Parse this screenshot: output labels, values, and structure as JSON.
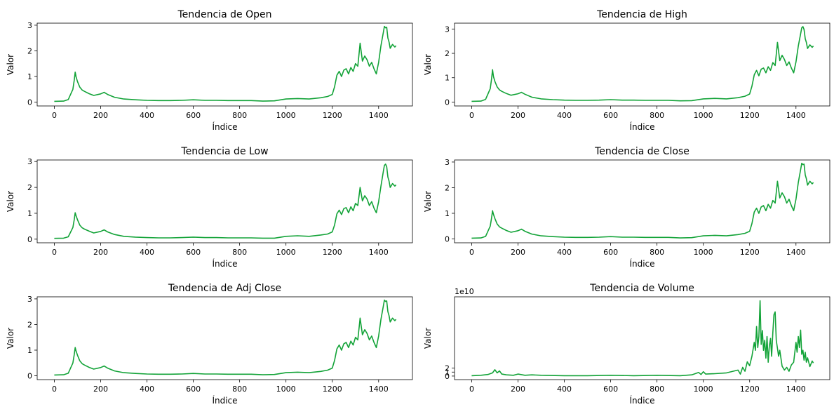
{
  "figure": {
    "background": "#ffffff",
    "line_color": "#13a338"
  },
  "chart_data": [
    {
      "type": "line",
      "title": "Tendencia de Open",
      "xlabel": "Índice",
      "ylabel": "Valor",
      "xlim": [
        -74,
        1546
      ],
      "ylim": [
        -0.15,
        3.08
      ],
      "xticks": [
        0,
        200,
        400,
        600,
        800,
        1000,
        1200,
        1400
      ],
      "yticks": [
        0,
        1,
        2,
        3
      ],
      "ytick_labels": [
        "0",
        "1",
        "2",
        "3"
      ],
      "offset_text": "",
      "grid": false,
      "series": [
        {
          "x": [
            0,
            40,
            60,
            70,
            80,
            86,
            90,
            94,
            100,
            110,
            120,
            130,
            150,
            170,
            200,
            215,
            230,
            260,
            300,
            350,
            400,
            450,
            500,
            550,
            600,
            650,
            700,
            750,
            800,
            850,
            900,
            950,
            1000,
            1050,
            1100,
            1150,
            1180,
            1200,
            1210,
            1220,
            1230,
            1240,
            1250,
            1260,
            1270,
            1280,
            1290,
            1300,
            1310,
            1320,
            1330,
            1340,
            1350,
            1360,
            1370,
            1380,
            1390,
            1400,
            1410,
            1420,
            1425,
            1430,
            1435,
            1440,
            1445,
            1450,
            1460,
            1470,
            1475
          ],
          "y": [
            0.03,
            0.04,
            0.1,
            0.3,
            0.5,
            0.85,
            1.17,
            0.98,
            0.8,
            0.58,
            0.47,
            0.42,
            0.33,
            0.26,
            0.32,
            0.38,
            0.3,
            0.19,
            0.12,
            0.09,
            0.07,
            0.06,
            0.06,
            0.07,
            0.09,
            0.07,
            0.07,
            0.06,
            0.06,
            0.06,
            0.04,
            0.05,
            0.12,
            0.14,
            0.12,
            0.17,
            0.22,
            0.3,
            0.6,
            1.05,
            1.2,
            1.0,
            1.25,
            1.3,
            1.1,
            1.35,
            1.2,
            1.5,
            1.4,
            2.3,
            1.6,
            1.8,
            1.65,
            1.4,
            1.55,
            1.3,
            1.1,
            1.55,
            2.2,
            2.7,
            2.95,
            2.9,
            2.92,
            2.5,
            2.35,
            2.1,
            2.25,
            2.15,
            2.2
          ]
        }
      ]
    },
    {
      "type": "line",
      "title": "Tendencia de High",
      "xlabel": "Índice",
      "ylabel": "Valor",
      "xlim": [
        -74,
        1546
      ],
      "ylim": [
        -0.16,
        3.24
      ],
      "xticks": [
        0,
        200,
        400,
        600,
        800,
        1000,
        1200,
        1400
      ],
      "yticks": [
        0,
        1,
        2,
        3
      ],
      "ytick_labels": [
        "0",
        "1",
        "2",
        "3"
      ],
      "offset_text": "",
      "grid": false,
      "series": [
        {
          "x": [
            0,
            40,
            60,
            70,
            80,
            86,
            90,
            94,
            100,
            110,
            120,
            130,
            150,
            170,
            200,
            215,
            230,
            260,
            300,
            350,
            400,
            450,
            500,
            550,
            600,
            650,
            700,
            750,
            800,
            850,
            900,
            950,
            1000,
            1050,
            1100,
            1150,
            1180,
            1200,
            1210,
            1220,
            1230,
            1240,
            1250,
            1260,
            1270,
            1280,
            1290,
            1300,
            1310,
            1320,
            1330,
            1340,
            1350,
            1360,
            1370,
            1380,
            1390,
            1400,
            1410,
            1420,
            1425,
            1430,
            1435,
            1440,
            1445,
            1450,
            1460,
            1470,
            1475
          ],
          "y": [
            0.03,
            0.04,
            0.11,
            0.33,
            0.55,
            0.95,
            1.33,
            1.05,
            0.85,
            0.62,
            0.5,
            0.44,
            0.35,
            0.28,
            0.34,
            0.4,
            0.32,
            0.2,
            0.13,
            0.1,
            0.08,
            0.07,
            0.07,
            0.08,
            0.1,
            0.08,
            0.08,
            0.07,
            0.07,
            0.07,
            0.05,
            0.06,
            0.13,
            0.15,
            0.13,
            0.18,
            0.24,
            0.33,
            0.65,
            1.12,
            1.3,
            1.08,
            1.35,
            1.4,
            1.2,
            1.45,
            1.3,
            1.62,
            1.5,
            2.45,
            1.7,
            1.92,
            1.75,
            1.5,
            1.65,
            1.4,
            1.2,
            1.65,
            2.3,
            2.8,
            3.05,
            3.1,
            2.98,
            2.6,
            2.45,
            2.2,
            2.35,
            2.25,
            2.3
          ]
        }
      ]
    },
    {
      "type": "line",
      "title": "Tendencia de Low",
      "xlabel": "Índice",
      "ylabel": "Valor",
      "xlim": [
        -74,
        1546
      ],
      "ylim": [
        -0.14,
        3.06
      ],
      "xticks": [
        0,
        200,
        400,
        600,
        800,
        1000,
        1200,
        1400
      ],
      "yticks": [
        0,
        1,
        2,
        3
      ],
      "ytick_labels": [
        "0",
        "1",
        "2",
        "3"
      ],
      "offset_text": "",
      "grid": false,
      "series": [
        {
          "x": [
            0,
            40,
            60,
            70,
            80,
            86,
            90,
            94,
            100,
            110,
            120,
            130,
            150,
            170,
            200,
            215,
            230,
            260,
            300,
            350,
            400,
            450,
            500,
            550,
            600,
            650,
            700,
            750,
            800,
            850,
            900,
            950,
            1000,
            1050,
            1100,
            1150,
            1180,
            1200,
            1210,
            1220,
            1230,
            1240,
            1250,
            1260,
            1270,
            1280,
            1290,
            1300,
            1310,
            1320,
            1330,
            1340,
            1350,
            1360,
            1370,
            1380,
            1390,
            1400,
            1410,
            1420,
            1425,
            1430,
            1435,
            1440,
            1445,
            1450,
            1460,
            1470,
            1475
          ],
          "y": [
            0.03,
            0.04,
            0.09,
            0.27,
            0.45,
            0.75,
            1.02,
            0.9,
            0.75,
            0.54,
            0.44,
            0.39,
            0.31,
            0.24,
            0.3,
            0.36,
            0.28,
            0.18,
            0.11,
            0.08,
            0.06,
            0.05,
            0.05,
            0.06,
            0.08,
            0.06,
            0.06,
            0.05,
            0.05,
            0.05,
            0.04,
            0.04,
            0.11,
            0.13,
            0.11,
            0.16,
            0.2,
            0.28,
            0.55,
            0.98,
            1.12,
            0.95,
            1.18,
            1.22,
            1.02,
            1.25,
            1.1,
            1.38,
            1.3,
            2.0,
            1.48,
            1.68,
            1.55,
            1.3,
            1.45,
            1.2,
            1.02,
            1.45,
            2.05,
            2.6,
            2.85,
            2.9,
            2.8,
            2.4,
            2.25,
            2.0,
            2.15,
            2.05,
            2.1
          ]
        }
      ]
    },
    {
      "type": "line",
      "title": "Tendencia de Close",
      "xlabel": "Índice",
      "ylabel": "Valor",
      "xlim": [
        -74,
        1546
      ],
      "ylim": [
        -0.15,
        3.08
      ],
      "xticks": [
        0,
        200,
        400,
        600,
        800,
        1000,
        1200,
        1400
      ],
      "yticks": [
        0,
        1,
        2,
        3
      ],
      "ytick_labels": [
        "0",
        "1",
        "2",
        "3"
      ],
      "offset_text": "",
      "grid": false,
      "series": [
        {
          "x": [
            0,
            40,
            60,
            70,
            80,
            86,
            90,
            94,
            100,
            110,
            120,
            130,
            150,
            170,
            200,
            215,
            230,
            260,
            300,
            350,
            400,
            450,
            500,
            550,
            600,
            650,
            700,
            750,
            800,
            850,
            900,
            950,
            1000,
            1050,
            1100,
            1150,
            1180,
            1200,
            1210,
            1220,
            1230,
            1240,
            1250,
            1260,
            1270,
            1280,
            1290,
            1300,
            1310,
            1320,
            1330,
            1340,
            1350,
            1360,
            1370,
            1380,
            1390,
            1400,
            1410,
            1420,
            1425,
            1430,
            1435,
            1440,
            1445,
            1450,
            1460,
            1470,
            1475
          ],
          "y": [
            0.03,
            0.04,
            0.1,
            0.3,
            0.5,
            0.82,
            1.1,
            0.96,
            0.8,
            0.58,
            0.47,
            0.42,
            0.33,
            0.26,
            0.32,
            0.38,
            0.3,
            0.19,
            0.12,
            0.09,
            0.07,
            0.06,
            0.06,
            0.07,
            0.09,
            0.07,
            0.07,
            0.06,
            0.06,
            0.06,
            0.04,
            0.05,
            0.12,
            0.14,
            0.12,
            0.17,
            0.22,
            0.3,
            0.6,
            1.05,
            1.2,
            1.0,
            1.25,
            1.3,
            1.1,
            1.35,
            1.2,
            1.5,
            1.4,
            2.25,
            1.6,
            1.8,
            1.65,
            1.4,
            1.55,
            1.3,
            1.1,
            1.55,
            2.2,
            2.7,
            2.95,
            2.9,
            2.92,
            2.5,
            2.35,
            2.1,
            2.25,
            2.15,
            2.2
          ]
        }
      ]
    },
    {
      "type": "line",
      "title": "Tendencia de Adj Close",
      "xlabel": "Índice",
      "ylabel": "Valor",
      "xlim": [
        -74,
        1546
      ],
      "ylim": [
        -0.15,
        3.08
      ],
      "xticks": [
        0,
        200,
        400,
        600,
        800,
        1000,
        1200,
        1400
      ],
      "yticks": [
        0,
        1,
        2,
        3
      ],
      "ytick_labels": [
        "0",
        "1",
        "2",
        "3"
      ],
      "offset_text": "",
      "grid": false,
      "series": [
        {
          "x": [
            0,
            40,
            60,
            70,
            80,
            86,
            90,
            94,
            100,
            110,
            120,
            130,
            150,
            170,
            200,
            215,
            230,
            260,
            300,
            350,
            400,
            450,
            500,
            550,
            600,
            650,
            700,
            750,
            800,
            850,
            900,
            950,
            1000,
            1050,
            1100,
            1150,
            1180,
            1200,
            1210,
            1220,
            1230,
            1240,
            1250,
            1260,
            1270,
            1280,
            1290,
            1300,
            1310,
            1320,
            1330,
            1340,
            1350,
            1360,
            1370,
            1380,
            1390,
            1400,
            1410,
            1420,
            1425,
            1430,
            1435,
            1440,
            1445,
            1450,
            1460,
            1470,
            1475
          ],
          "y": [
            0.03,
            0.04,
            0.1,
            0.3,
            0.5,
            0.82,
            1.1,
            0.96,
            0.8,
            0.58,
            0.47,
            0.42,
            0.33,
            0.26,
            0.32,
            0.38,
            0.3,
            0.19,
            0.12,
            0.09,
            0.07,
            0.06,
            0.06,
            0.07,
            0.09,
            0.07,
            0.07,
            0.06,
            0.06,
            0.06,
            0.04,
            0.05,
            0.12,
            0.14,
            0.12,
            0.17,
            0.22,
            0.3,
            0.6,
            1.05,
            1.2,
            1.0,
            1.25,
            1.3,
            1.1,
            1.35,
            1.2,
            1.5,
            1.4,
            2.25,
            1.6,
            1.8,
            1.65,
            1.4,
            1.55,
            1.3,
            1.1,
            1.55,
            2.2,
            2.7,
            2.95,
            2.9,
            2.92,
            2.5,
            2.35,
            2.1,
            2.25,
            2.15,
            2.2
          ]
        }
      ]
    },
    {
      "type": "line",
      "title": "Tendencia de Volume",
      "xlabel": "Índice",
      "ylabel": "Valor",
      "xlim": [
        -74,
        1546
      ],
      "ylim": [
        -0.9,
        20
      ],
      "xticks": [
        0,
        200,
        400,
        600,
        800,
        1000,
        1200,
        1400
      ],
      "yticks": [
        0,
        1,
        2
      ],
      "ytick_labels": [
        "0",
        "1",
        "2"
      ],
      "y_units": "1e10",
      "offset_text": "1e10",
      "grid": false,
      "series": [
        {
          "x": [
            0,
            40,
            70,
            90,
            100,
            110,
            120,
            130,
            150,
            180,
            200,
            230,
            260,
            300,
            400,
            500,
            600,
            700,
            800,
            900,
            950,
            980,
            990,
            1000,
            1010,
            1050,
            1100,
            1150,
            1160,
            1170,
            1180,
            1190,
            1200,
            1210,
            1220,
            1225,
            1230,
            1235,
            1240,
            1245,
            1250,
            1255,
            1260,
            1265,
            1270,
            1275,
            1280,
            1285,
            1290,
            1295,
            1300,
            1305,
            1310,
            1315,
            1320,
            1325,
            1330,
            1340,
            1350,
            1360,
            1370,
            1380,
            1390,
            1400,
            1405,
            1410,
            1415,
            1420,
            1425,
            1430,
            1435,
            1440,
            1445,
            1450,
            1460,
            1470,
            1475
          ],
          "y": [
            0.1,
            0.2,
            0.4,
            0.8,
            1.6,
            0.8,
            1.3,
            0.5,
            0.3,
            0.2,
            0.5,
            0.2,
            0.3,
            0.2,
            0.1,
            0.1,
            0.2,
            0.1,
            0.2,
            0.1,
            0.3,
            0.9,
            0.4,
            1.1,
            0.5,
            0.6,
            0.8,
            1.5,
            0.5,
            2.2,
            1.2,
            3.6,
            2.6,
            5.0,
            8.5,
            6.5,
            12.5,
            7.2,
            10.0,
            19.0,
            8.0,
            11.5,
            6.5,
            9.0,
            4.5,
            10.0,
            3.5,
            7.5,
            9.5,
            5.0,
            11.0,
            15.5,
            16.2,
            9.0,
            7.0,
            5.0,
            6.5,
            2.5,
            1.5,
            2.2,
            1.2,
            2.8,
            3.5,
            8.5,
            6.0,
            10.0,
            7.2,
            11.6,
            5.5,
            6.5,
            4.0,
            6.0,
            3.5,
            4.6,
            2.4,
            3.8,
            3.3
          ]
        }
      ]
    }
  ]
}
